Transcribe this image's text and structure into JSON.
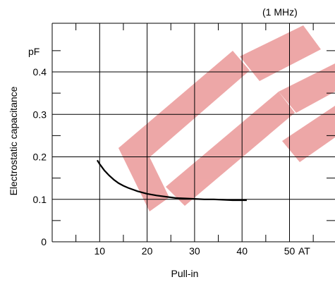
{
  "chart_data": {
    "type": "line",
    "condition_label": "(1 MHz)",
    "xlabel": "Pull-in",
    "x_unit": "AT",
    "ylabel": "Electrostatic capacitance",
    "y_unit": "pF",
    "xlim": [
      0,
      55
    ],
    "ylim": [
      0,
      0.45
    ],
    "x_ticks": [
      10,
      20,
      30,
      40,
      50
    ],
    "y_ticks": [
      0.1,
      0.2,
      0.3,
      0.4
    ],
    "y_zero_label": "0",
    "grid": true,
    "watermark_color": "#e88a8a",
    "series": [
      {
        "x": [
          9.5,
          10,
          11,
          12,
          13,
          14,
          15,
          16,
          18,
          20,
          22,
          24,
          26,
          28,
          30,
          32,
          34,
          36,
          38,
          41
        ],
        "y": [
          0.192,
          0.183,
          0.168,
          0.156,
          0.146,
          0.138,
          0.132,
          0.127,
          0.119,
          0.113,
          0.109,
          0.106,
          0.103,
          0.102,
          0.101,
          0.1,
          0.1,
          0.099,
          0.098,
          0.098
        ]
      }
    ]
  }
}
